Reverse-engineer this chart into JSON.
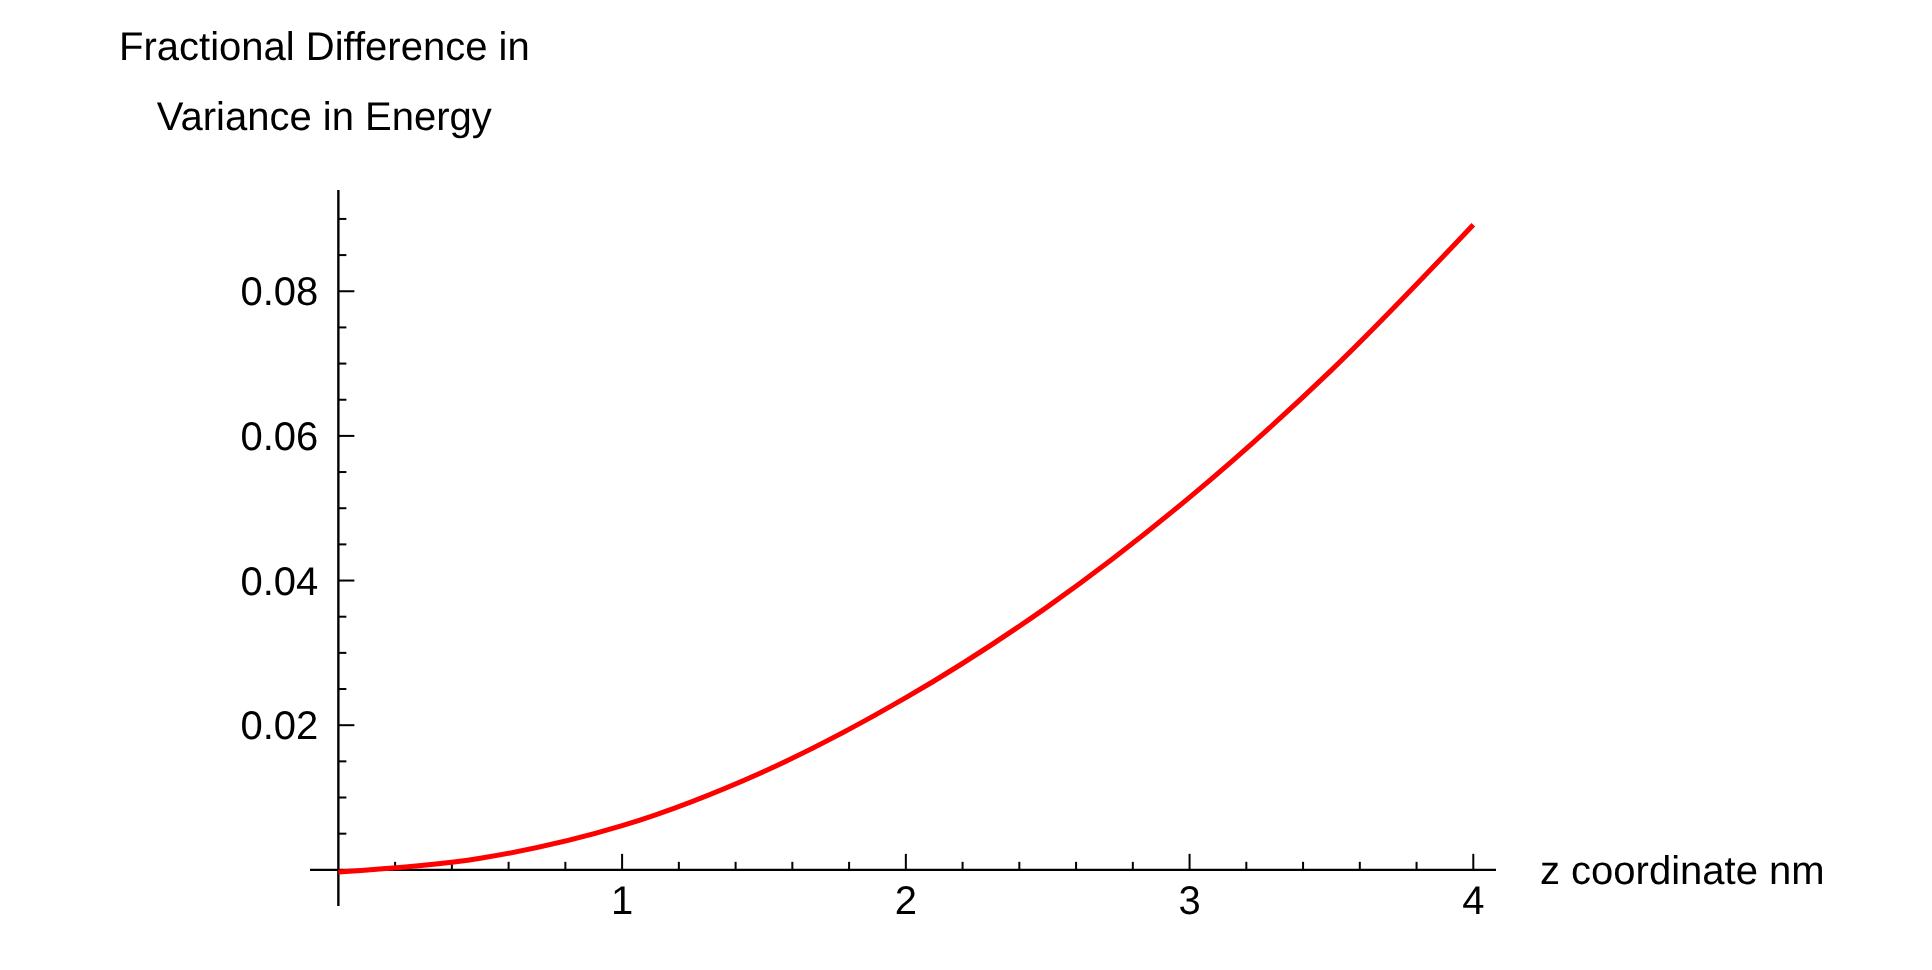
{
  "chart_data": {
    "type": "line",
    "ylabel": "Fractional Difference in\nVariance in Energy",
    "xlabel": "z coordinate nm",
    "x": [
      0,
      0.5,
      1,
      1.5,
      2,
      2.5,
      3,
      3.5,
      4
    ],
    "series": [
      {
        "color": "#ff0000",
        "values": [
          -0.0003,
          0.0016,
          0.0061,
          0.0136,
          0.0238,
          0.0364,
          0.0515,
          0.0691,
          0.0892
        ]
      }
    ],
    "xlim": [
      -0.1,
      4.08
    ],
    "ylim": [
      -0.005,
      0.094
    ],
    "xticks": [
      {
        "value": 0.2,
        "label": null
      },
      {
        "value": 0.4,
        "label": null
      },
      {
        "value": 0.6,
        "label": null
      },
      {
        "value": 0.8,
        "label": null
      },
      1,
      {
        "value": 1.2,
        "label": null
      },
      {
        "value": 1.4,
        "label": null
      },
      {
        "value": 1.6,
        "label": null
      },
      {
        "value": 1.8,
        "label": null
      },
      2,
      {
        "value": 2.2,
        "label": null
      },
      {
        "value": 2.4,
        "label": null
      },
      {
        "value": 2.6,
        "label": null
      },
      {
        "value": 2.8,
        "label": null
      },
      3,
      {
        "value": 3.2,
        "label": null
      },
      {
        "value": 3.4,
        "label": null
      },
      {
        "value": 3.6,
        "label": null
      },
      {
        "value": 3.8,
        "label": null
      },
      4
    ],
    "yticks": [
      {
        "value": 0.005,
        "label": null
      },
      {
        "value": 0.01,
        "label": null
      },
      {
        "value": 0.015,
        "label": null
      },
      0.02,
      {
        "value": 0.025,
        "label": null
      },
      {
        "value": 0.03,
        "label": null
      },
      {
        "value": 0.035,
        "label": null
      },
      0.04,
      {
        "value": 0.045,
        "label": null
      },
      {
        "value": 0.05,
        "label": null
      },
      {
        "value": 0.055,
        "label": null
      },
      0.06,
      {
        "value": 0.065,
        "label": null
      },
      {
        "value": 0.07,
        "label": null
      },
      {
        "value": 0.075,
        "label": null
      },
      0.08,
      {
        "value": 0.085,
        "label": null
      },
      {
        "value": 0.09,
        "label": null
      }
    ],
    "grid": false
  }
}
